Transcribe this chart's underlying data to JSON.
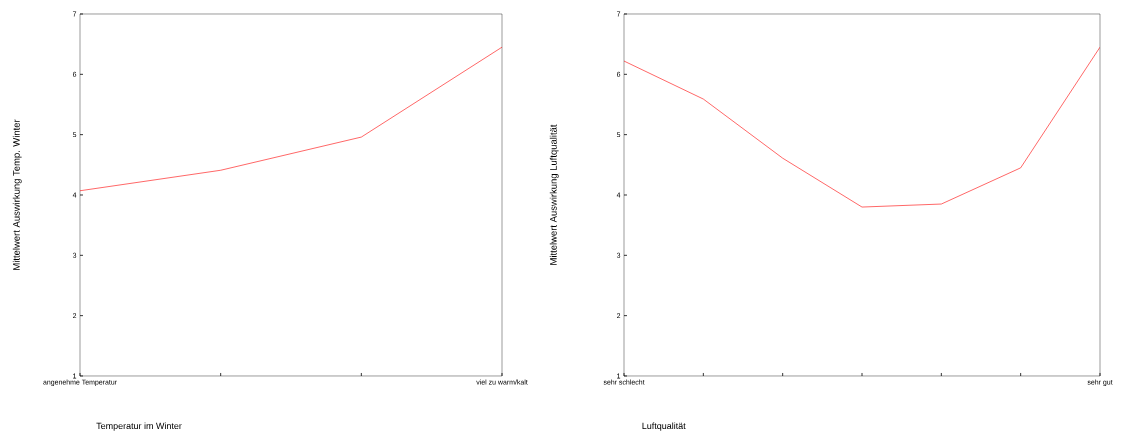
{
  "chart_data": [
    {
      "type": "line",
      "categories": [
        "angenehme Temperatur",
        null,
        null,
        "viel zu warm/kalt"
      ],
      "values": [
        4.07,
        4.41,
        4.96,
        6.45
      ],
      "color": "#ff0000",
      "xlabel": "Temperatur im Winter",
      "ylabel": "Mittelwert Auswirkung Temp. Winter",
      "ylim": [
        1,
        7
      ],
      "yticks": [
        1,
        2,
        3,
        4,
        5,
        6,
        7
      ]
    },
    {
      "type": "line",
      "categories": [
        "sehr schlecht",
        null,
        null,
        null,
        null,
        null,
        "sehr gut"
      ],
      "values": [
        6.22,
        5.59,
        4.61,
        3.8,
        3.85,
        4.45,
        6.45
      ],
      "color": "#ff0000",
      "xlabel": "Luftqualität",
      "ylabel": "Mittelwert Auswirkung Luftqualität",
      "ylim": [
        1,
        7
      ],
      "yticks": [
        1,
        2,
        3,
        4,
        5,
        6,
        7
      ]
    }
  ]
}
